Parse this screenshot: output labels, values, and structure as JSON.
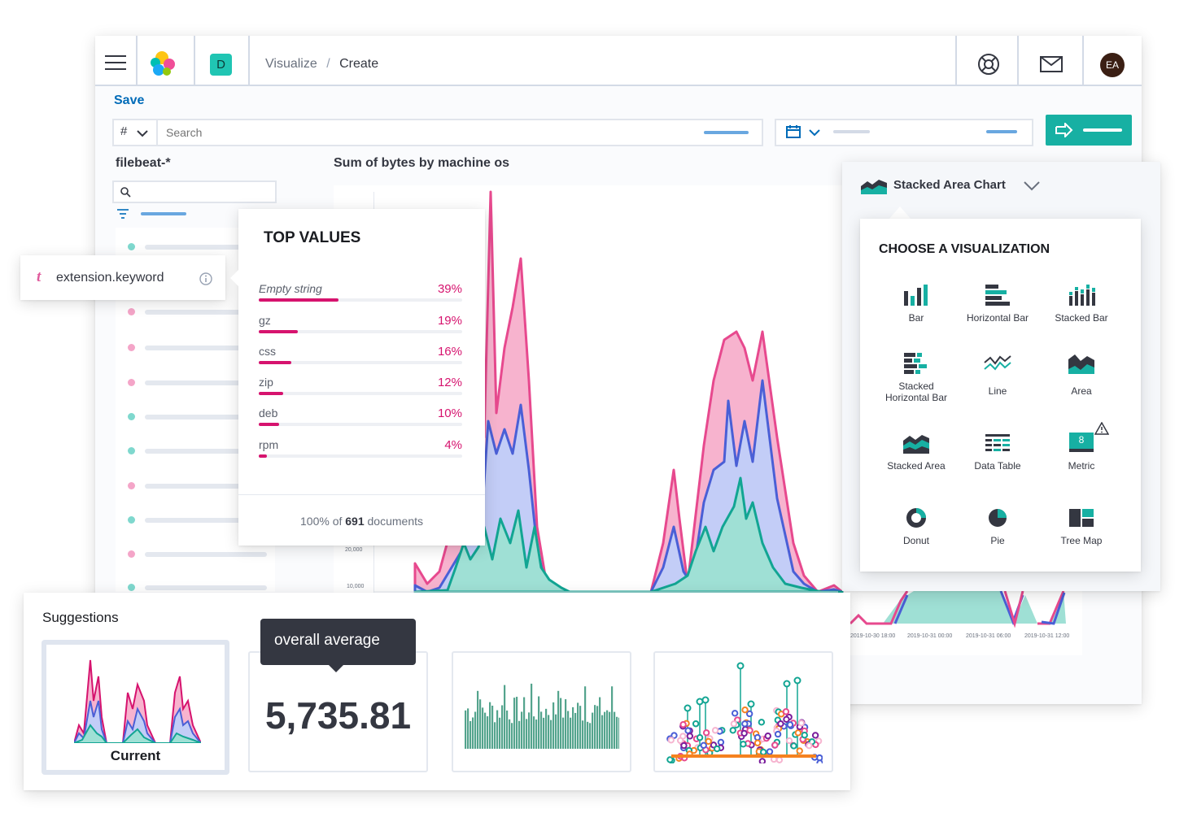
{
  "header": {
    "space_badge": "D",
    "breadcrumb": [
      "Visualize",
      "Create"
    ],
    "avatar": "EA",
    "icons": [
      "menu-icon",
      "elastic-logo",
      "help-icon",
      "mail-icon"
    ]
  },
  "toolbar": {
    "save_label": "Save",
    "query_lang": "#",
    "search_placeholder": "Search"
  },
  "sidebar": {
    "index_pattern": "filebeat-*",
    "field_tooltip": "extension.keyword",
    "field_type_glyph": "t"
  },
  "chart": {
    "title": "Sum of bytes by machine os",
    "y_ticks": [
      "20,000",
      "10,000"
    ],
    "x_ticks": [
      "2019-10-30 18:00",
      "2019-10-31 00:00",
      "2019-10-31 06:00",
      "2019-10-31 12:00"
    ],
    "colors": {
      "pink": "#e7498e",
      "blue": "#4a5fd6",
      "teal": "#12a593"
    }
  },
  "top_values": {
    "title": "TOP VALUES",
    "items": [
      {
        "label": "Empty string",
        "pct": "39%",
        "value": 39
      },
      {
        "label": "gz",
        "pct": "19%",
        "value": 19
      },
      {
        "label": "css",
        "pct": "16%",
        "value": 16
      },
      {
        "label": "zip",
        "pct": "12%",
        "value": 12
      },
      {
        "label": "deb",
        "pct": "10%",
        "value": 10
      },
      {
        "label": "rpm",
        "pct": "4%",
        "value": 4
      }
    ],
    "footer_prefix": "100% of ",
    "footer_count": "691",
    "footer_suffix": " documents"
  },
  "viz_picker": {
    "selected": "Stacked Area Chart",
    "title": "CHOOSE A VISUALIZATION",
    "items": [
      {
        "label": "Bar",
        "icon": "bar-chart-icon"
      },
      {
        "label": "Horizontal Bar",
        "icon": "horizontal-bar-icon"
      },
      {
        "label": "Stacked Bar",
        "icon": "stacked-bar-icon"
      },
      {
        "label": "Stacked Horizontal Bar",
        "icon": "stacked-horizontal-bar-icon"
      },
      {
        "label": "Line",
        "icon": "line-chart-icon"
      },
      {
        "label": "Area",
        "icon": "area-chart-icon"
      },
      {
        "label": "Stacked Area",
        "icon": "stacked-area-icon"
      },
      {
        "label": "Data Table",
        "icon": "data-table-icon"
      },
      {
        "label": "Metric",
        "icon": "metric-icon",
        "glyph": "8"
      },
      {
        "label": "Donut",
        "icon": "donut-icon"
      },
      {
        "label": "Pie",
        "icon": "pie-icon"
      },
      {
        "label": "Tree Map",
        "icon": "tree-map-icon"
      }
    ]
  },
  "suggestions": {
    "title": "Suggestions",
    "current_label": "Current",
    "tooltip": "overall average",
    "metric_value": "5,735.81"
  }
}
